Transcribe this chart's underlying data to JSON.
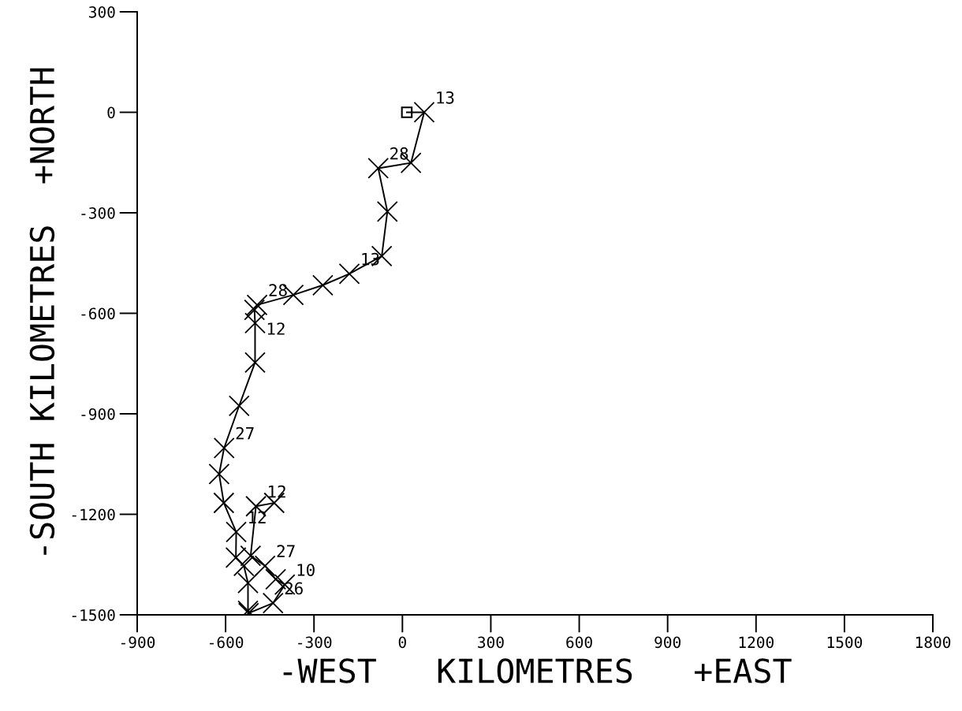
{
  "chart_data": {
    "type": "line",
    "xlabel": "-WEST   KILOMETRES   +EAST",
    "ylabel": "-SOUTH KILOMETRES  +NORTH",
    "xlim": [
      -900,
      1800
    ],
    "xticks": [
      -900,
      -600,
      -300,
      0,
      300,
      600,
      900,
      1200,
      1500,
      1800
    ],
    "ylim": [
      -1500,
      300
    ],
    "yticks": [
      -1500,
      -1200,
      -900,
      -600,
      -300,
      0,
      300
    ],
    "grid": false,
    "legend": false,
    "marker": "cross",
    "line_style": "solid",
    "series": [
      {
        "color": "#000000",
        "x": [
          15,
          74,
          29,
          -82,
          -51,
          -70,
          -180,
          -270,
          -370,
          -493,
          -502,
          -500,
          -500,
          -554,
          -605,
          -622,
          -606,
          -564,
          -565,
          -538,
          -524,
          -524,
          -522,
          -439,
          -399,
          -430,
          -466,
          -515,
          -497,
          -435
        ],
        "values": [
          0,
          0,
          -151,
          -167,
          -296,
          -429,
          -482,
          -516,
          -545,
          -575,
          -590,
          -629,
          -747,
          -876,
          -1002,
          -1080,
          -1166,
          -1253,
          -1329,
          -1354,
          -1405,
          -1488,
          -1495,
          -1465,
          -1410,
          -1394,
          -1354,
          -1324,
          -1176,
          -1166
        ]
      },
      {
        "type": "scatter",
        "color": "#000000",
        "marker": "square",
        "x": [
          15
        ],
        "values": [
          0
        ]
      }
    ],
    "annotations": [
      {
        "text": "13",
        "x": 74,
        "y": 0
      },
      {
        "text": "28",
        "x": -82,
        "y": -167
      },
      {
        "text": "13",
        "x": -180,
        "y": -482
      },
      {
        "text": "28",
        "x": -493,
        "y": -575
      },
      {
        "text": "12",
        "x": -500,
        "y": -690
      },
      {
        "text": "27",
        "x": -605,
        "y": -1002
      },
      {
        "text": "12",
        "x": -497,
        "y": -1176
      },
      {
        "text": "12",
        "x": -564,
        "y": -1253
      },
      {
        "text": "27",
        "x": -466,
        "y": -1354
      },
      {
        "text": "10",
        "x": -399,
        "y": -1410
      },
      {
        "text": "26",
        "x": -439,
        "y": -1465
      }
    ]
  }
}
